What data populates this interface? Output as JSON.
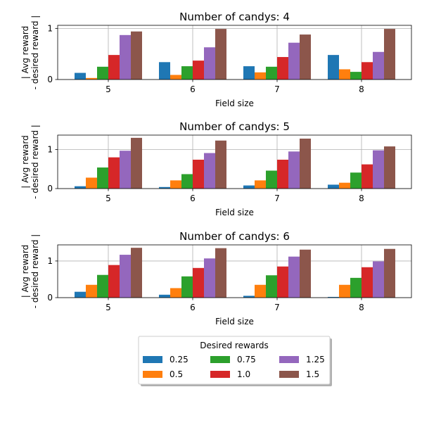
{
  "chart_data": [
    {
      "type": "bar",
      "title": "Number of candys: 4",
      "xlabel": "Field size",
      "ylabel_lines": [
        "| Avg reward",
        "- desired reward |"
      ],
      "categories": [
        "5",
        "6",
        "7",
        "8"
      ],
      "ylim": [
        0,
        1.06
      ],
      "yticks": [
        0,
        1
      ],
      "grid": true,
      "series": [
        {
          "name": "0.25",
          "values": [
            0.13,
            0.34,
            0.26,
            0.48
          ]
        },
        {
          "name": "0.5",
          "values": [
            0.03,
            0.09,
            0.14,
            0.2
          ]
        },
        {
          "name": "0.75",
          "values": [
            0.25,
            0.26,
            0.25,
            0.15
          ]
        },
        {
          "name": "1.0",
          "values": [
            0.48,
            0.37,
            0.44,
            0.34
          ]
        },
        {
          "name": "1.25",
          "values": [
            0.87,
            0.63,
            0.72,
            0.54
          ]
        },
        {
          "name": "1.5",
          "values": [
            0.94,
            0.99,
            0.88,
            0.99
          ]
        }
      ]
    },
    {
      "type": "bar",
      "title": "Number of candys: 5",
      "xlabel": "Field size",
      "ylabel_lines": [
        "| Avg reward",
        "- desired reward |"
      ],
      "categories": [
        "5",
        "6",
        "7",
        "8"
      ],
      "ylim": [
        0,
        1.37
      ],
      "yticks": [
        0,
        1
      ],
      "grid": true,
      "series": [
        {
          "name": "0.25",
          "values": [
            0.06,
            0.04,
            0.08,
            0.1
          ]
        },
        {
          "name": "0.5",
          "values": [
            0.28,
            0.21,
            0.21,
            0.15
          ]
        },
        {
          "name": "0.75",
          "values": [
            0.54,
            0.37,
            0.46,
            0.41
          ]
        },
        {
          "name": "1.0",
          "values": [
            0.8,
            0.74,
            0.74,
            0.62
          ]
        },
        {
          "name": "1.25",
          "values": [
            0.97,
            0.91,
            0.95,
            0.98
          ]
        },
        {
          "name": "1.5",
          "values": [
            1.3,
            1.23,
            1.28,
            1.08
          ]
        }
      ]
    },
    {
      "type": "bar",
      "title": "Number of candys: 6",
      "xlabel": "Field size",
      "ylabel_lines": [
        "| Avg reward",
        "- desired reward |"
      ],
      "categories": [
        "5",
        "6",
        "7",
        "8"
      ],
      "ylim": [
        0,
        1.44
      ],
      "yticks": [
        0,
        1
      ],
      "grid": true,
      "series": [
        {
          "name": "0.25",
          "values": [
            0.16,
            0.08,
            0.05,
            0.02
          ]
        },
        {
          "name": "0.5",
          "values": [
            0.35,
            0.26,
            0.35,
            0.35
          ]
        },
        {
          "name": "0.75",
          "values": [
            0.62,
            0.58,
            0.61,
            0.54
          ]
        },
        {
          "name": "1.0",
          "values": [
            0.89,
            0.81,
            0.85,
            0.83
          ]
        },
        {
          "name": "1.25",
          "values": [
            1.17,
            1.07,
            1.12,
            0.99
          ]
        },
        {
          "name": "1.5",
          "values": [
            1.36,
            1.35,
            1.31,
            1.33
          ]
        }
      ]
    }
  ],
  "legend": {
    "title": "Desired rewards",
    "entries": [
      "0.25",
      "0.5",
      "0.75",
      "1.0",
      "1.25",
      "1.5"
    ],
    "placement": "bottom-center"
  },
  "colors": [
    "#1f77b4",
    "#ff7f0e",
    "#2ca02c",
    "#d62728",
    "#9467bd",
    "#8c564b"
  ]
}
